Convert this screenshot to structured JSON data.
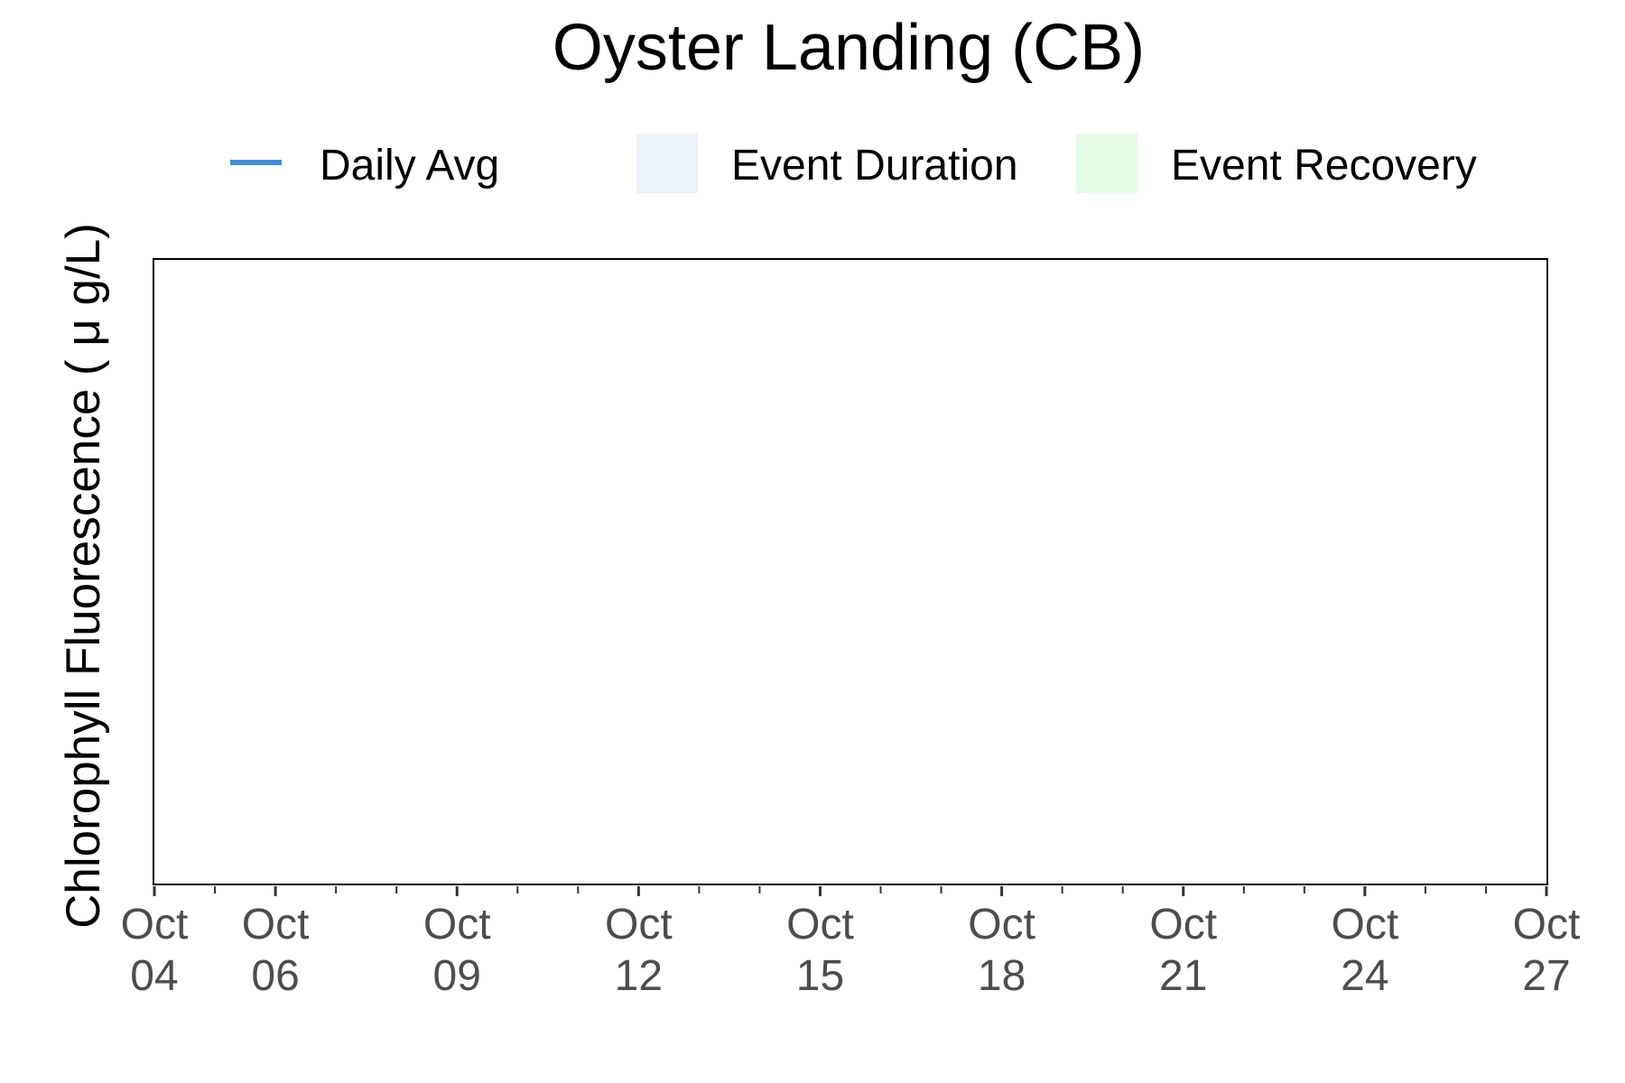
{
  "chart_data": {
    "type": "line",
    "title": "Oyster Landing (CB)",
    "xlabel": "",
    "ylabel": "Chlorophyll Fluorescence ( μ g/L)",
    "x_type": "date",
    "xlim": [
      "Oct 04",
      "Oct 27"
    ],
    "x_ticks": [
      {
        "month": "Oct",
        "day": "04",
        "d": 4
      },
      {
        "month": "Oct",
        "day": "06",
        "d": 6
      },
      {
        "month": "Oct",
        "day": "09",
        "d": 9
      },
      {
        "month": "Oct",
        "day": "12",
        "d": 12
      },
      {
        "month": "Oct",
        "day": "15",
        "d": 15
      },
      {
        "month": "Oct",
        "day": "18",
        "d": 18
      },
      {
        "month": "Oct",
        "day": "21",
        "d": 21
      },
      {
        "month": "Oct",
        "day": "24",
        "d": 24
      },
      {
        "month": "Oct",
        "day": "27",
        "d": 27
      }
    ],
    "x_minor_ticks": [
      5,
      7,
      8,
      10,
      11,
      13,
      14,
      16,
      17,
      19,
      20,
      22,
      23,
      25,
      26
    ],
    "series": [
      {
        "name": "Daily Avg",
        "x": [],
        "values": []
      }
    ],
    "legend": {
      "placement": "top",
      "items": [
        {
          "label": "Daily Avg",
          "kind": "line",
          "color": "#4a8ccc"
        },
        {
          "label": "Event Duration",
          "kind": "fill",
          "color": "#ecf2fa"
        },
        {
          "label": "Event Recovery",
          "kind": "fill",
          "color": "#e5fbe5"
        }
      ]
    },
    "grid": false,
    "panel_border": true
  }
}
